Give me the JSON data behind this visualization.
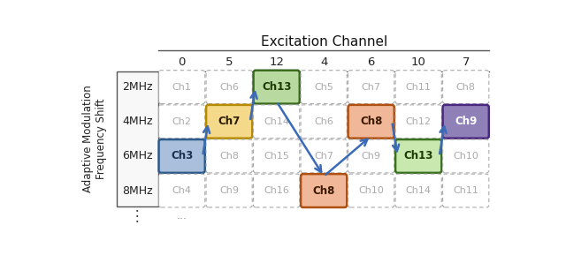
{
  "title": "Excitation Channel",
  "ylabel": "Adaptive Modulation\nFrequency Shift",
  "col_headers": [
    "0",
    "5",
    "12",
    "4",
    "6",
    "10",
    "7"
  ],
  "row_headers": [
    "2MHz",
    "4MHz",
    "6MHz",
    "8MHz"
  ],
  "grid_labels": [
    [
      "Ch1",
      "Ch6",
      "Ch13",
      "Ch5",
      "Ch7",
      "Ch11",
      "Ch8"
    ],
    [
      "Ch2",
      "Ch7",
      "Ch14",
      "Ch6",
      "Ch8",
      "Ch12",
      "Ch9"
    ],
    [
      "Ch3",
      "Ch8",
      "Ch15",
      "Ch7",
      "Ch9",
      "Ch13",
      "Ch10"
    ],
    [
      "Ch4",
      "Ch9",
      "Ch16",
      "Ch8",
      "Ch10",
      "Ch14",
      "Ch11"
    ]
  ],
  "highlighted": [
    {
      "row": 2,
      "col": 0,
      "label": "Ch3",
      "facecolor": "#aabfdc",
      "edgecolor": "#2c5a8a",
      "textcolor": "#1a3050"
    },
    {
      "row": 1,
      "col": 1,
      "label": "Ch7",
      "facecolor": "#f5d98b",
      "edgecolor": "#b88a00",
      "textcolor": "#2a1a00"
    },
    {
      "row": 0,
      "col": 2,
      "label": "Ch13",
      "facecolor": "#b8d9a0",
      "edgecolor": "#3a6a20",
      "textcolor": "#1a3a00"
    },
    {
      "row": 3,
      "col": 3,
      "label": "Ch8",
      "facecolor": "#f0b898",
      "edgecolor": "#b05010",
      "textcolor": "#3a1800"
    },
    {
      "row": 1,
      "col": 4,
      "label": "Ch8",
      "facecolor": "#f0b898",
      "edgecolor": "#b05010",
      "textcolor": "#3a1800"
    },
    {
      "row": 2,
      "col": 5,
      "label": "Ch13",
      "facecolor": "#c8e8b0",
      "edgecolor": "#3a7020",
      "textcolor": "#1a3a00"
    },
    {
      "row": 1,
      "col": 6,
      "label": "Ch9",
      "facecolor": "#9080b8",
      "edgecolor": "#4a2880",
      "textcolor": "#ffffff"
    }
  ],
  "arrows": [
    {
      "from_row": 2,
      "from_col": 0,
      "to_row": 1,
      "to_col": 1
    },
    {
      "from_row": 1,
      "from_col": 1,
      "to_row": 0,
      "to_col": 2
    },
    {
      "from_row": 0,
      "from_col": 2,
      "to_row": 3,
      "to_col": 3
    },
    {
      "from_row": 3,
      "from_col": 3,
      "to_row": 1,
      "to_col": 4
    },
    {
      "from_row": 1,
      "from_col": 4,
      "to_row": 2,
      "to_col": 5
    },
    {
      "from_row": 2,
      "from_col": 5,
      "to_row": 1,
      "to_col": 6
    }
  ],
  "arrow_color": "#3a6ab8",
  "default_facecolor": "#ffffff",
  "default_edgecolor": "#aaaaaa",
  "default_textcolor": "#aaaaaa"
}
